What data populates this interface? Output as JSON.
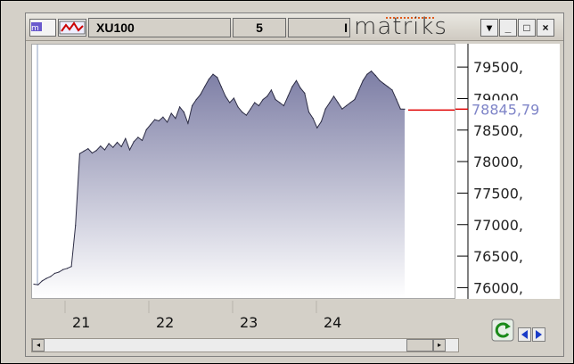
{
  "toolbar": {
    "symbol": "XU100",
    "period": "5",
    "brand": "matriks",
    "brand_prefix": "I",
    "buttons": [
      "▾",
      "_",
      "□",
      "×"
    ]
  },
  "chart_data": {
    "type": "area",
    "title": "",
    "xlabel": "",
    "ylabel": "",
    "ylim": [
      75850,
      79870
    ],
    "y_ticks": [
      79500,
      79000,
      78500,
      78000,
      77500,
      77000,
      76500,
      76000
    ],
    "y_tick_labels": [
      "79500,",
      "79000,",
      "78500,",
      "78000,",
      "77500,",
      "77000,",
      "76500,",
      "76000,"
    ],
    "x_tick_labels": [
      "21",
      "22",
      "23",
      "24"
    ],
    "current_value": 78845.79,
    "current_label": "78845,79",
    "series": [
      {
        "values": [
          76070,
          76060,
          76120,
          76160,
          76190,
          76240,
          76260,
          76300,
          76320,
          76350,
          77000,
          78140,
          78180,
          78220,
          78150,
          78190,
          78260,
          78200,
          78300,
          78240,
          78320,
          78250,
          78380,
          78200,
          78330,
          78400,
          78350,
          78520,
          78600,
          78680,
          78660,
          78720,
          78640,
          78780,
          78700,
          78880,
          78800,
          78620,
          78900,
          79000,
          79080,
          79200,
          79320,
          79400,
          79350,
          79200,
          79050,
          78950,
          79020,
          78880,
          78800,
          78750,
          78850,
          78950,
          78900,
          79000,
          79050,
          79150,
          79000,
          78950,
          78900,
          79050,
          79200,
          79300,
          79180,
          79100,
          78800,
          78700,
          78550,
          78650,
          78850,
          78950,
          79050,
          78950,
          78850,
          78900,
          78950,
          79000,
          79150,
          79300,
          79400,
          79450,
          79380,
          79300,
          79250,
          79200,
          79150,
          79000,
          78850,
          78845.79
        ]
      }
    ]
  },
  "nav": {
    "refresh": "refresh-icon",
    "prev": "arrow-left-icon",
    "next": "arrow-right-icon"
  },
  "colors": {
    "area_top": "#7d7ea5",
    "area_bottom": "#ffffff",
    "line": "#2d2d45",
    "price_marker": "#e00000",
    "price_label": "#7f85c8"
  }
}
